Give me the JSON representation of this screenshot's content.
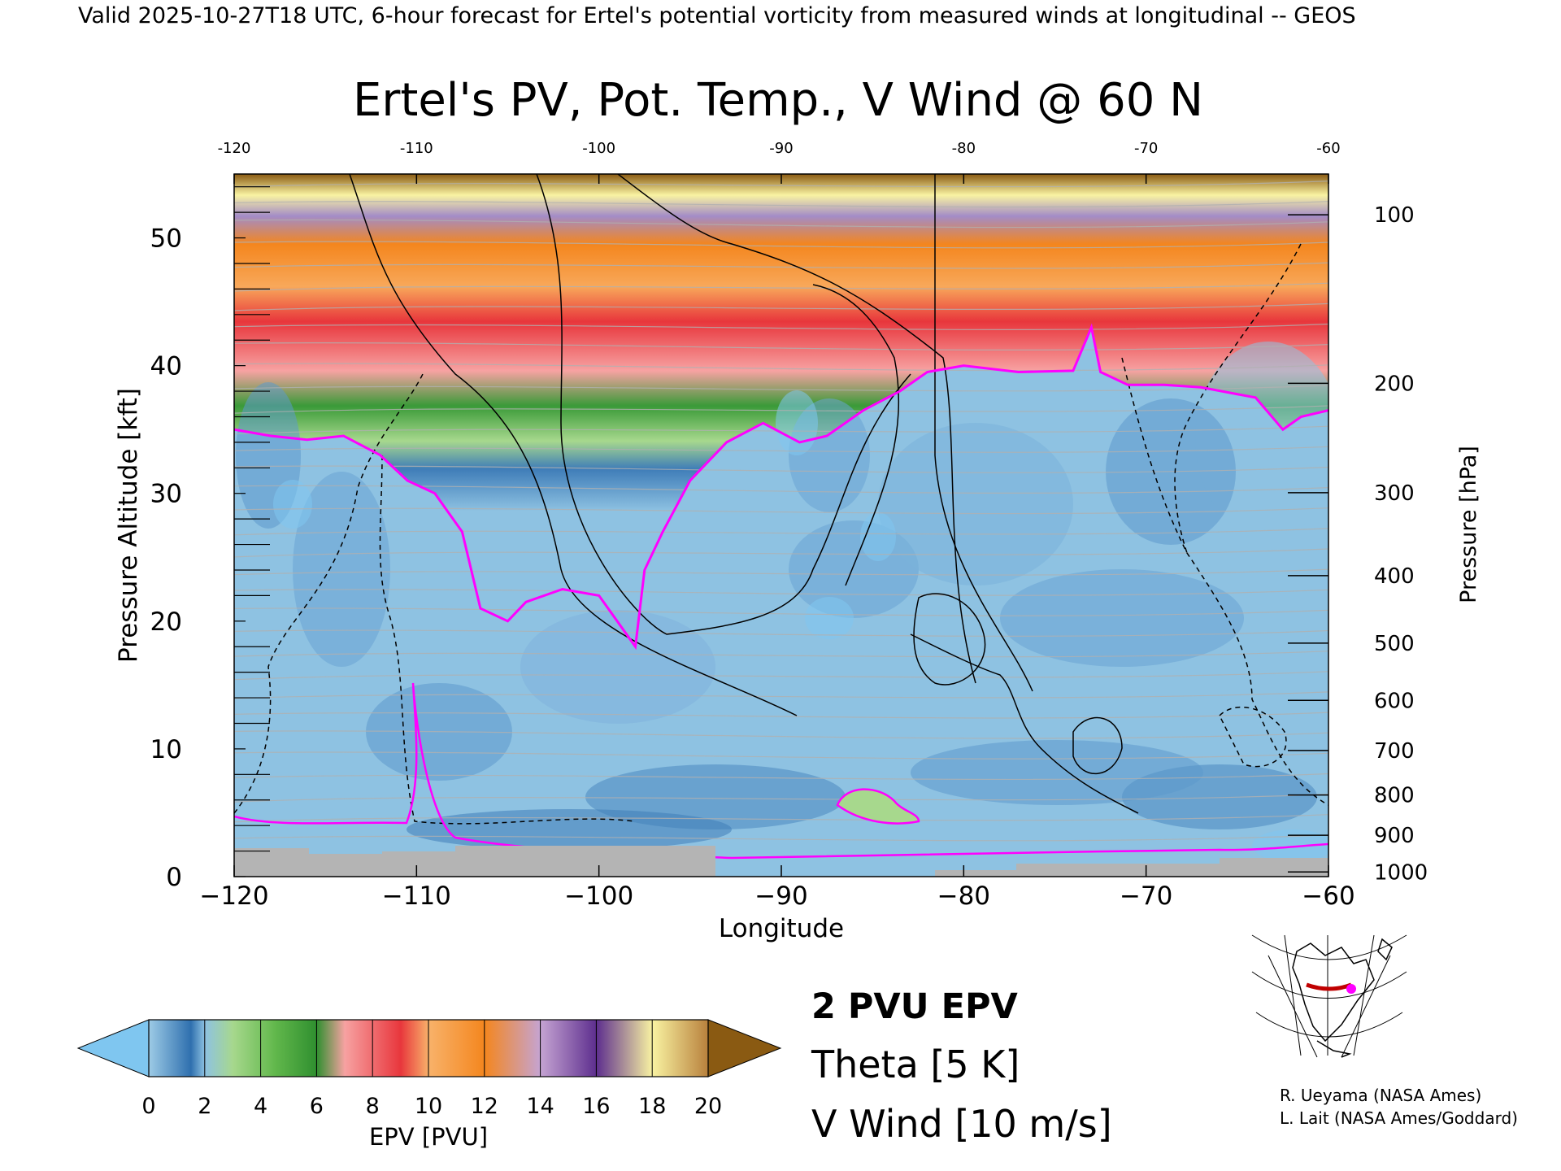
{
  "header": {
    "banner": "Valid 2025-10-27T18 UTC, 6-hour forecast for Ertel's potential vorticity from measured winds at longitudinal -- GEOS"
  },
  "chart_data": {
    "type": "heatmap",
    "title": "Ertel's PV, Pot. Temp., V Wind @ 60 N",
    "xlabel": "Longitude",
    "ylabel": "Pressure Altitude [kft]",
    "y2label": "Pressure [hPa]",
    "xlim": [
      -120,
      -60
    ],
    "ylim": [
      0,
      55
    ],
    "x_ticks": [
      -120,
      -110,
      -100,
      -90,
      -80,
      -70,
      -60
    ],
    "x_tick_labels": [
      "−120",
      "−110",
      "−100",
      "−90",
      "−80",
      "−70",
      "−60"
    ],
    "x_top_tick_labels": [
      "-120",
      "-110",
      "-100",
      "-90",
      "-80",
      "-70",
      "-60"
    ],
    "y_ticks": [
      0,
      10,
      20,
      30,
      40,
      50
    ],
    "y_tick_labels": [
      "0",
      "10",
      "20",
      "30",
      "40",
      "50"
    ],
    "pressure_ticks": [
      {
        "hpa": 100,
        "label": "100"
      },
      {
        "hpa": 200,
        "label": "200"
      },
      {
        "hpa": 300,
        "label": "300"
      },
      {
        "hpa": 400,
        "label": "400"
      },
      {
        "hpa": 500,
        "label": "500"
      },
      {
        "hpa": 600,
        "label": "600"
      },
      {
        "hpa": 700,
        "label": "700"
      },
      {
        "hpa": 800,
        "label": "800"
      },
      {
        "hpa": 900,
        "label": "900"
      },
      {
        "hpa": 1000,
        "label": "1000"
      }
    ],
    "tropopause_2pvu_kft": [
      [
        -120,
        35
      ],
      [
        -118,
        34.5
      ],
      [
        -116,
        34.2
      ],
      [
        -114,
        34.5
      ],
      [
        -112,
        33
      ],
      [
        -110.5,
        31
      ],
      [
        -109,
        30
      ],
      [
        -107.5,
        27
      ],
      [
        -106.5,
        21
      ],
      [
        -105,
        20
      ],
      [
        -104,
        21.5
      ],
      [
        -102,
        22.5
      ],
      [
        -100,
        22
      ],
      [
        -99,
        20
      ],
      [
        -98,
        18
      ],
      [
        -97.5,
        24
      ],
      [
        -96.5,
        27
      ],
      [
        -95,
        31
      ],
      [
        -93,
        34
      ],
      [
        -91,
        35.5
      ],
      [
        -89,
        34
      ],
      [
        -87.5,
        34.5
      ],
      [
        -85.5,
        36.5
      ],
      [
        -83.5,
        38
      ],
      [
        -82,
        39.5
      ],
      [
        -80,
        40
      ],
      [
        -77,
        39.5
      ],
      [
        -74,
        39.6
      ],
      [
        -73,
        43
      ],
      [
        -72.5,
        39.5
      ],
      [
        -71,
        38.5
      ],
      [
        -69,
        38.5
      ],
      [
        -67,
        38.3
      ],
      [
        -64,
        37.5
      ],
      [
        -62.5,
        35
      ],
      [
        -61.5,
        36
      ],
      [
        -60,
        36.5
      ]
    ],
    "colorbar": {
      "label": "EPV [PVU]",
      "range": [
        0,
        20
      ],
      "tick_values": [
        0,
        2,
        4,
        6,
        8,
        10,
        12,
        14,
        16,
        18,
        20
      ],
      "tick_labels": [
        "0",
        "2",
        "4",
        "6",
        "8",
        "10",
        "12",
        "14",
        "16",
        "18",
        "20"
      ],
      "under_color": "#7fc6f0",
      "over_color": "#8a5a12",
      "stops": [
        {
          "pvu": 0,
          "color": "#9dcbe6"
        },
        {
          "pvu": 1.5,
          "color": "#2e6fae"
        },
        {
          "pvu": 2,
          "color": "#8ec2e2"
        },
        {
          "pvu": 3,
          "color": "#a7d88d"
        },
        {
          "pvu": 4.5,
          "color": "#62b84c"
        },
        {
          "pvu": 6,
          "color": "#2f8f2f"
        },
        {
          "pvu": 7,
          "color": "#f7a2a2"
        },
        {
          "pvu": 9,
          "color": "#e8363c"
        },
        {
          "pvu": 10,
          "color": "#f8b26a"
        },
        {
          "pvu": 12,
          "color": "#f4861e"
        },
        {
          "pvu": 14,
          "color": "#c5a4d3"
        },
        {
          "pvu": 16,
          "color": "#5d2e8e"
        },
        {
          "pvu": 18,
          "color": "#f9f3a2"
        },
        {
          "pvu": 20,
          "color": "#b8803c"
        }
      ]
    },
    "legend": {
      "placement": "bottom-center",
      "entries": [
        {
          "label": "2 PVU EPV",
          "color": "#ff00ff"
        },
        {
          "label": "Theta [5 K]",
          "color": "#b0b0b0"
        },
        {
          "label": "V Wind [10 m/s]",
          "color": "#000000"
        }
      ]
    }
  },
  "credits": {
    "line1": "R. Ueyama (NASA Ames)",
    "line2": "L. Lait (NASA Ames/Goddard)"
  }
}
